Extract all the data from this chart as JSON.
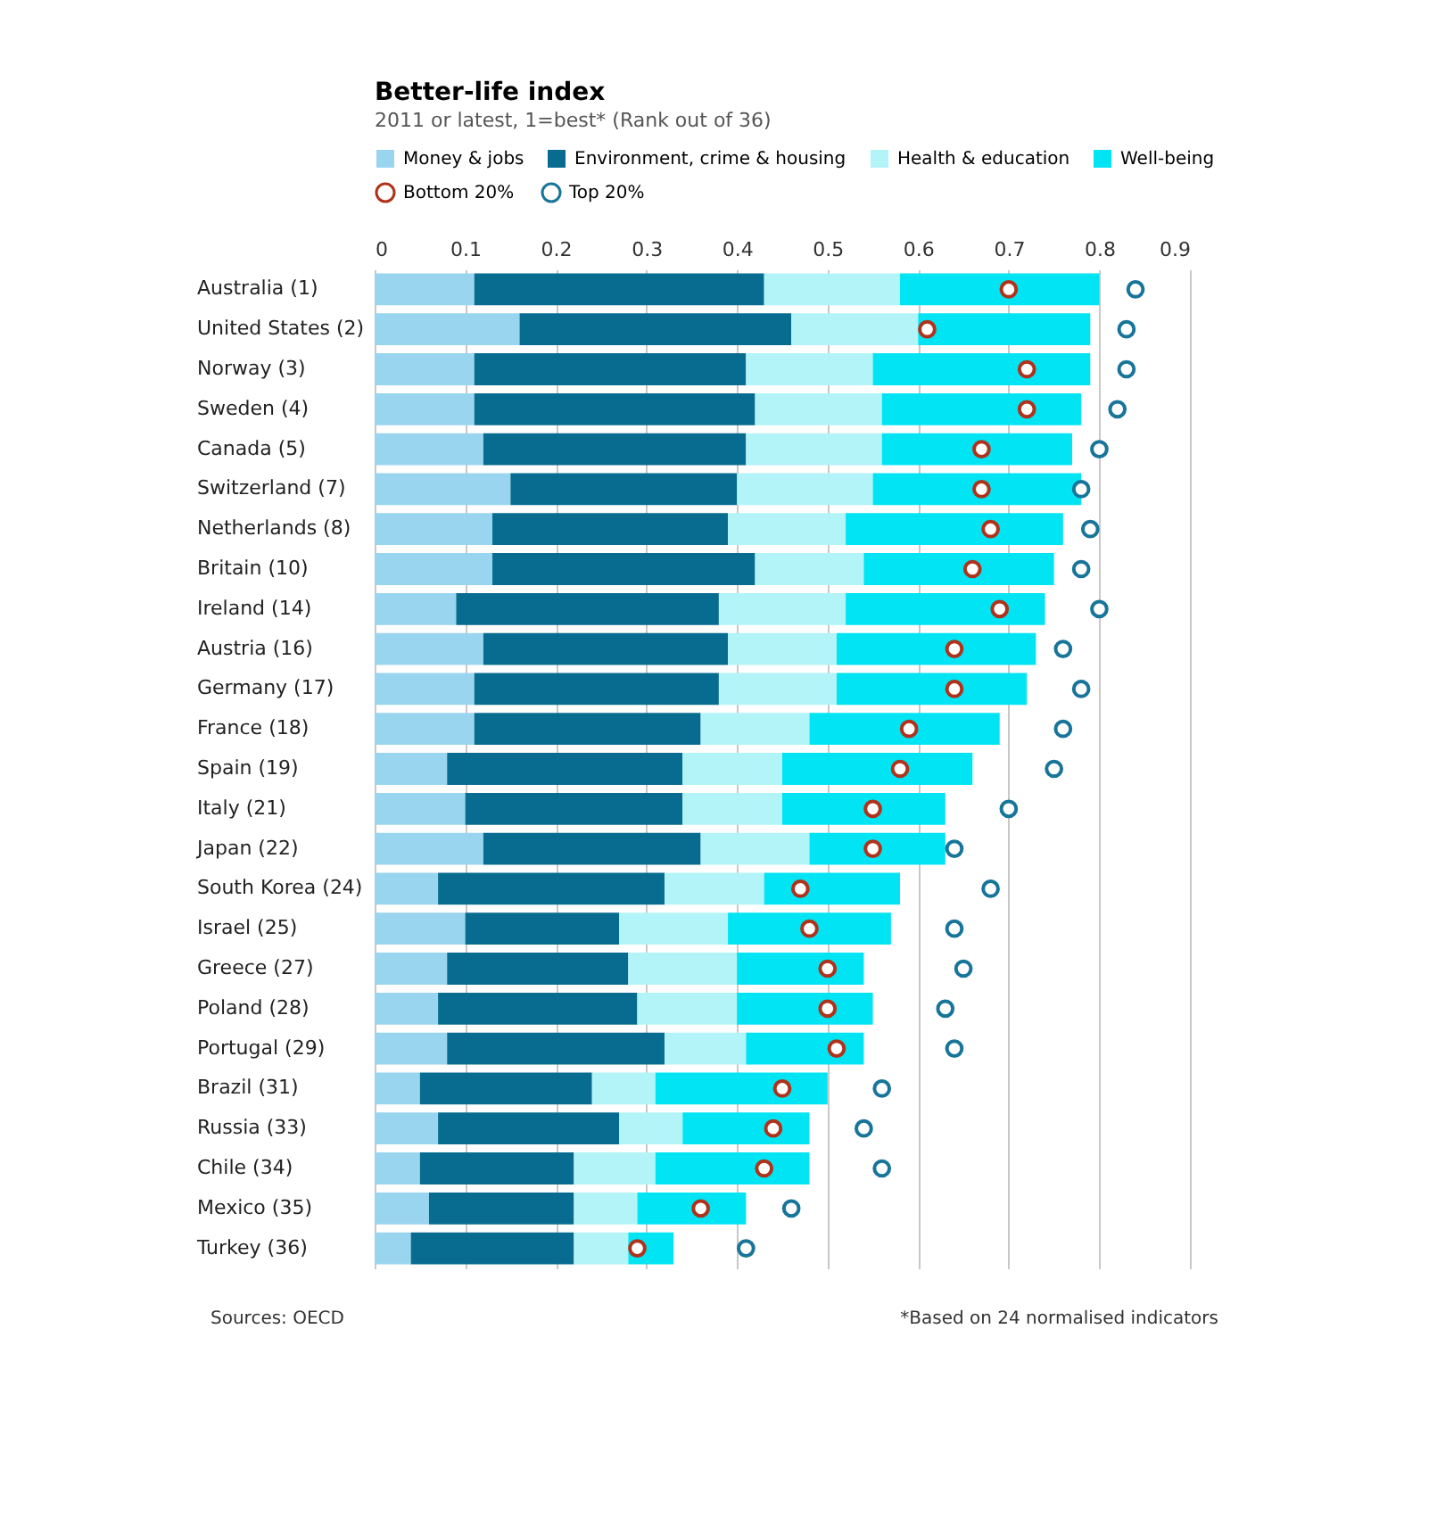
{
  "chart_data": {
    "type": "bar",
    "orientation": "horizontal",
    "stacked": true,
    "title": "Better-life index",
    "subtitle": "2011 or latest, 1=best* (Rank out of 36)",
    "categories": [
      "Australia (1)",
      "United States (2)",
      "Norway (3)",
      "Sweden (4)",
      "Canada (5)",
      "Switzerland (7)",
      "Netherlands (8)",
      "Britain (10)",
      "Ireland (14)",
      "Austria (16)",
      "Germany (17)",
      "France (18)",
      "Spain (19)",
      "Italy (21)",
      "Japan (22)",
      "South Korea (24)",
      "Israel (25)",
      "Greece (27)",
      "Poland (28)",
      "Portugal (29)",
      "Brazil (31)",
      "Russia (33)",
      "Chile (34)",
      "Mexico (35)",
      "Turkey (36)"
    ],
    "series": [
      {
        "name": "Money & jobs",
        "color": "#99d5ef",
        "values": [
          0.11,
          0.16,
          0.11,
          0.11,
          0.12,
          0.15,
          0.13,
          0.13,
          0.09,
          0.12,
          0.11,
          0.11,
          0.08,
          0.1,
          0.12,
          0.07,
          0.1,
          0.08,
          0.07,
          0.08,
          0.05,
          0.07,
          0.05,
          0.06,
          0.04
        ]
      },
      {
        "name": "Environment, crime & housing",
        "color": "#076c90",
        "values": [
          0.32,
          0.3,
          0.3,
          0.31,
          0.29,
          0.25,
          0.26,
          0.29,
          0.29,
          0.27,
          0.27,
          0.25,
          0.26,
          0.24,
          0.24,
          0.25,
          0.17,
          0.2,
          0.22,
          0.24,
          0.19,
          0.2,
          0.17,
          0.16,
          0.18
        ]
      },
      {
        "name": "Health & education",
        "color": "#b2f4f7",
        "values": [
          0.15,
          0.14,
          0.14,
          0.14,
          0.15,
          0.15,
          0.13,
          0.12,
          0.14,
          0.12,
          0.13,
          0.12,
          0.11,
          0.11,
          0.12,
          0.11,
          0.12,
          0.12,
          0.11,
          0.09,
          0.07,
          0.07,
          0.09,
          0.07,
          0.06
        ]
      },
      {
        "name": "Well-being",
        "color": "#00e4f4",
        "values": [
          0.22,
          0.19,
          0.24,
          0.22,
          0.21,
          0.23,
          0.24,
          0.21,
          0.22,
          0.22,
          0.21,
          0.21,
          0.21,
          0.18,
          0.15,
          0.15,
          0.18,
          0.14,
          0.15,
          0.13,
          0.19,
          0.14,
          0.17,
          0.12,
          0.05
        ]
      },
      {
        "name": "Bottom 20%",
        "type": "scatter",
        "color": "#b0321a",
        "values": [
          0.7,
          0.61,
          0.72,
          0.72,
          0.67,
          0.67,
          0.68,
          0.66,
          0.69,
          0.64,
          0.64,
          0.59,
          0.58,
          0.55,
          0.55,
          0.47,
          0.48,
          0.5,
          0.5,
          0.51,
          0.45,
          0.44,
          0.43,
          0.36,
          0.29
        ]
      },
      {
        "name": "Top 20%",
        "type": "scatter",
        "color": "#17759a",
        "values": [
          0.84,
          0.83,
          0.83,
          0.82,
          0.8,
          0.78,
          0.79,
          0.78,
          0.8,
          0.76,
          0.78,
          0.76,
          0.75,
          0.7,
          0.64,
          0.68,
          0.64,
          0.65,
          0.63,
          0.64,
          0.56,
          0.54,
          0.56,
          0.46,
          0.41
        ]
      }
    ],
    "xlim": [
      0,
      0.9
    ],
    "xticks": [
      0,
      0.1,
      0.2,
      0.3,
      0.4,
      0.5,
      0.6,
      0.7,
      0.8,
      0.9
    ],
    "grid": "x",
    "legend": "top",
    "marker": "circle",
    "annotations": [
      "Sources: OECD",
      "*Based on 24 normalised indicators"
    ]
  }
}
